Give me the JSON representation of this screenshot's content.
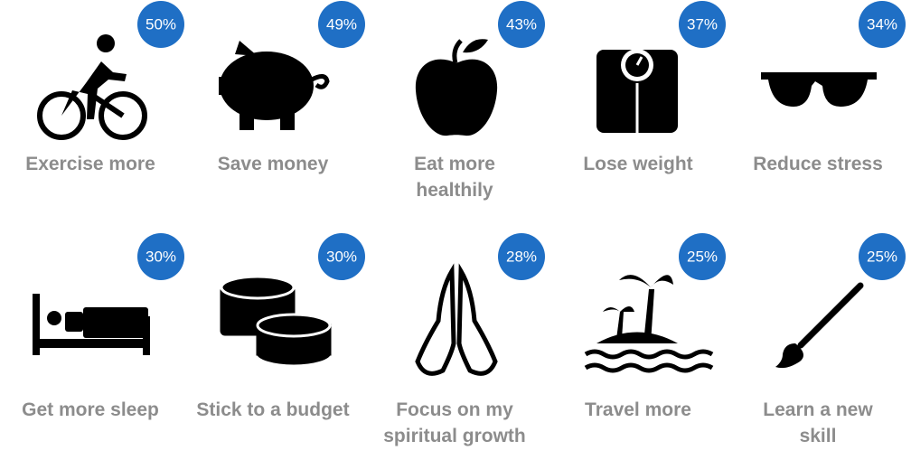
{
  "items": [
    {
      "percent": "50%",
      "label": [
        "Exercise more"
      ]
    },
    {
      "percent": "49%",
      "label": [
        "Save money"
      ]
    },
    {
      "percent": "43%",
      "label": [
        "Eat more",
        "healthily"
      ]
    },
    {
      "percent": "37%",
      "label": [
        "Lose weight"
      ]
    },
    {
      "percent": "34%",
      "label": [
        "Reduce stress"
      ]
    },
    {
      "percent": "30%",
      "label": [
        "Get more  sleep"
      ]
    },
    {
      "percent": "30%",
      "label": [
        "Stick to a budget"
      ]
    },
    {
      "percent": "28%",
      "label": [
        "Focus on my",
        "spiritual growth"
      ]
    },
    {
      "percent": "25%",
      "label": [
        "Travel more"
      ]
    },
    {
      "percent": "25%",
      "label": [
        "Learn a new",
        "skill"
      ]
    }
  ]
}
